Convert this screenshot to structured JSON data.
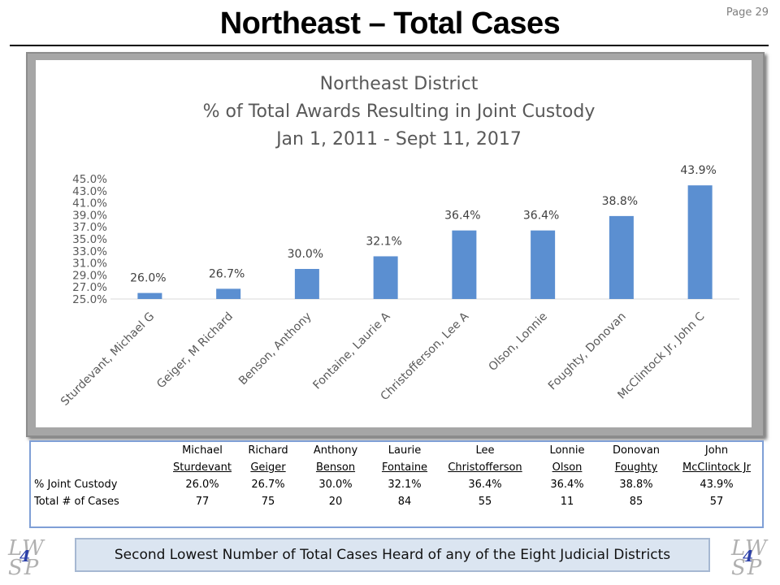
{
  "header": {
    "title": "Northeast – Total Cases",
    "page_number": "Page 29"
  },
  "chart_data": {
    "type": "bar",
    "title_lines": [
      "Northeast District",
      "% of Total Awards Resulting in Joint Custody",
      "Jan 1, 2011 - Sept 11, 2017"
    ],
    "categories": [
      "Sturdevant, Michael G",
      "Geiger, M Richard",
      "Benson, Anthony",
      "Fontaine, Laurie A",
      "Christofferson, Lee A",
      "Olson, Lonnie",
      "Foughty, Donovan",
      "McClintock Jr, John C"
    ],
    "values": [
      26.0,
      26.7,
      30.0,
      32.1,
      36.4,
      36.4,
      38.8,
      43.9
    ],
    "data_labels": [
      "26.0%",
      "26.7%",
      "30.0%",
      "32.1%",
      "36.4%",
      "36.4%",
      "38.8%",
      "43.9%"
    ],
    "ylim": [
      25,
      45
    ],
    "yticks": [
      25,
      27,
      29,
      31,
      33,
      35,
      37,
      39,
      41,
      43,
      45
    ],
    "ytick_labels": [
      "25.0%",
      "27.0%",
      "29.0%",
      "31.0%",
      "33.0%",
      "35.0%",
      "37.0%",
      "39.0%",
      "41.0%",
      "43.0%",
      "45.0%"
    ],
    "bar_color": "#5b8fd1",
    "grid": false,
    "legend": "none"
  },
  "table": {
    "first_names": [
      "Michael",
      "Richard",
      "Anthony",
      "Laurie",
      "Lee",
      "Lonnie",
      "Donovan",
      "John"
    ],
    "last_names": [
      "Sturdevant",
      "Geiger",
      "Benson",
      "Fontaine",
      "Christofferson",
      "Olson",
      "Foughty",
      "McClintock Jr"
    ],
    "row_joint": {
      "label": "% Joint Custody",
      "values": [
        "26.0%",
        "26.7%",
        "30.0%",
        "32.1%",
        "36.4%",
        "36.4%",
        "38.8%",
        "43.9%"
      ]
    },
    "row_cases": {
      "label": "Total # of Cases",
      "values": [
        "77",
        "75",
        "20",
        "84",
        "55",
        "11",
        "85",
        "57"
      ]
    }
  },
  "footer": {
    "banner_text": "Second Lowest Number of Total Cases Heard of any of the Eight Judicial Districts",
    "logo_top": "LW",
    "logo_bottom": "SP",
    "logo_number": "4"
  }
}
